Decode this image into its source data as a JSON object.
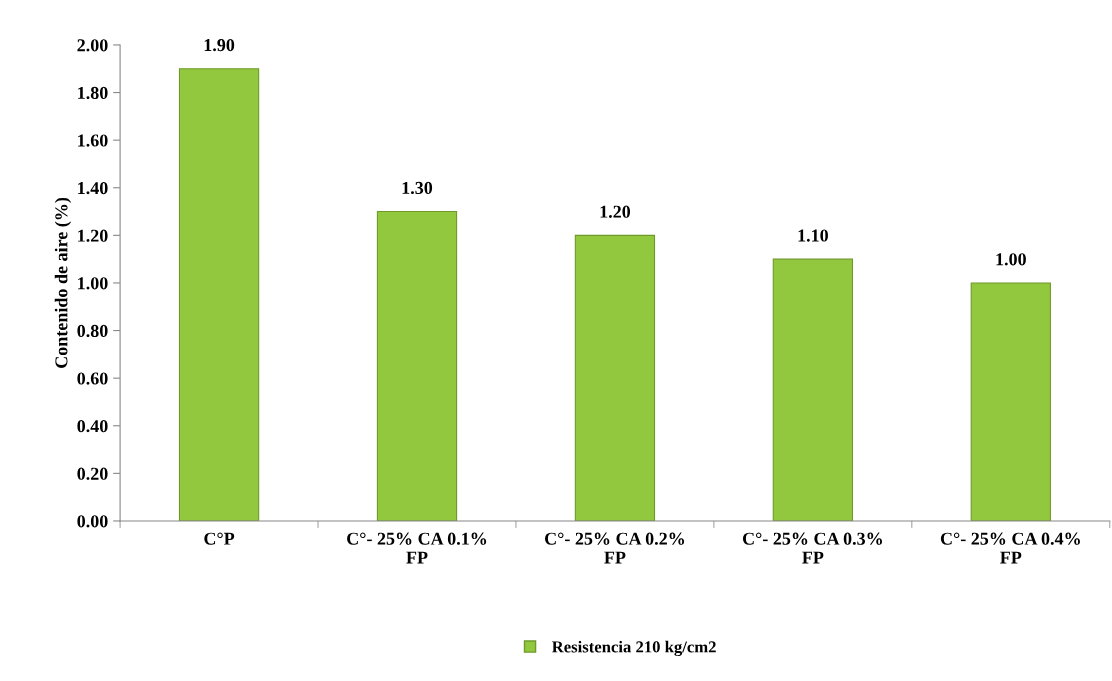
{
  "chart_data": {
    "type": "bar",
    "ylabel": "Contenido de aire (%)",
    "categories": [
      "C°P",
      "C°- 25% CA 0.1%\nFP",
      "C°- 25% CA 0.2%\nFP",
      "C°- 25% CA 0.3%\nFP",
      "C°- 25% CA 0.4%\nFP"
    ],
    "series": [
      {
        "name": "Resistencia 210 kg/cm2",
        "color": "#92c83e",
        "values": [
          1.9,
          1.3,
          1.2,
          1.1,
          1.0
        ],
        "value_labels": [
          "1.90",
          "1.30",
          "1.20",
          "1.10",
          "1.00"
        ]
      }
    ],
    "ylim": [
      0,
      2
    ],
    "yticks": [
      {
        "value": 0,
        "label": "0.00"
      },
      {
        "value": 0.2,
        "label": "0.20"
      },
      {
        "value": 0.4,
        "label": "0.40"
      },
      {
        "value": 0.6,
        "label": "0.60"
      },
      {
        "value": 0.8,
        "label": "0.80"
      },
      {
        "value": 1.0,
        "label": "1.00"
      },
      {
        "value": 1.2,
        "label": "1.20"
      },
      {
        "value": 1.4,
        "label": "1.40"
      },
      {
        "value": 1.6,
        "label": "1.60"
      },
      {
        "value": 1.8,
        "label": "1.80"
      },
      {
        "value": 2.0,
        "label": "2.00"
      }
    ],
    "grid": false,
    "legend": "bottom"
  }
}
